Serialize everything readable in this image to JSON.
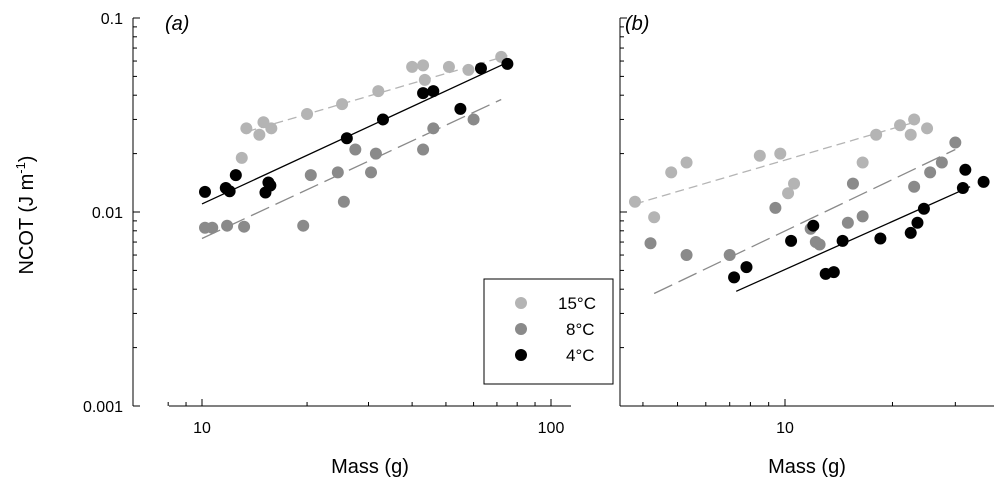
{
  "y_axis_label": {
    "main": "NCOT (J m",
    "sup": "-1",
    "close": ")"
  },
  "legend": {
    "entries": [
      {
        "label": "15°C",
        "color": "#b4b4b4"
      },
      {
        "label": "8°C",
        "color": "#8a8a8a"
      },
      {
        "label": "4°C",
        "color": "#000000"
      }
    ]
  },
  "chart_data": [
    {
      "type": "scatter",
      "panel_label": "(a)",
      "xlabel": "Mass (g)",
      "ylabel": "NCOT (J m-1)",
      "x_scale": "log",
      "y_scale": "log",
      "xlim": [
        8,
        130
      ],
      "ylim": [
        0.001,
        0.1
      ],
      "x_ticks": [
        10,
        100
      ],
      "y_ticks": [
        0.001,
        0.01,
        0.1
      ],
      "x_tick_labels": [
        "10",
        "100"
      ],
      "y_tick_labels": [
        "0.001",
        "0.01",
        "0.1"
      ],
      "legend_position": "center-bottom",
      "series": [
        {
          "name": "15°C",
          "color": "#b4b4b4",
          "line_style": "short-dash",
          "points": [
            [
              13.0,
              0.019
            ],
            [
              13.4,
              0.027
            ],
            [
              14.6,
              0.025
            ],
            [
              15.0,
              0.029
            ],
            [
              15.8,
              0.027
            ],
            [
              20.0,
              0.032
            ],
            [
              25.2,
              0.036
            ],
            [
              32.0,
              0.042
            ],
            [
              40.0,
              0.056
            ],
            [
              43.0,
              0.057
            ],
            [
              43.5,
              0.048
            ],
            [
              51.0,
              0.056
            ],
            [
              58.0,
              0.054
            ],
            [
              72.0,
              0.063
            ]
          ],
          "fit": [
            [
              13.5,
              0.026
            ],
            [
              75,
              0.064
            ]
          ]
        },
        {
          "name": "8°C",
          "color": "#8a8a8a",
          "line_style": "long-dash",
          "points": [
            [
              10.2,
              0.0083
            ],
            [
              10.7,
              0.0083
            ],
            [
              11.8,
              0.0085
            ],
            [
              13.2,
              0.0084
            ],
            [
              19.5,
              0.0085
            ],
            [
              20.5,
              0.0155
            ],
            [
              24.5,
              0.016
            ],
            [
              25.5,
              0.0113
            ],
            [
              27.5,
              0.021
            ],
            [
              30.5,
              0.016
            ],
            [
              31.5,
              0.02
            ],
            [
              43.0,
              0.021
            ],
            [
              46.0,
              0.027
            ],
            [
              60.0,
              0.03
            ]
          ],
          "fit": [
            [
              10,
              0.0073
            ],
            [
              72,
              0.038
            ]
          ]
        },
        {
          "name": "4°C",
          "color": "#000000",
          "line_style": "solid",
          "points": [
            [
              10.2,
              0.0127
            ],
            [
              11.7,
              0.0133
            ],
            [
              12.0,
              0.0128
            ],
            [
              12.5,
              0.0155
            ],
            [
              15.2,
              0.0126
            ],
            [
              15.5,
              0.0142
            ],
            [
              15.7,
              0.0137
            ],
            [
              26.0,
              0.024
            ],
            [
              33.0,
              0.03
            ],
            [
              43.0,
              0.041
            ],
            [
              46.0,
              0.042
            ],
            [
              55.0,
              0.034
            ],
            [
              63.0,
              0.055
            ],
            [
              75.0,
              0.058
            ]
          ],
          "fit": [
            [
              10,
              0.011
            ],
            [
              75,
              0.059
            ]
          ]
        }
      ]
    },
    {
      "type": "scatter",
      "panel_label": "(b)",
      "xlabel": "Mass (g)",
      "ylabel": "NCOT (J m-1)",
      "x_scale": "log",
      "y_scale": "log",
      "xlim": [
        3.3,
        39
      ],
      "ylim": [
        0.001,
        0.1
      ],
      "x_ticks": [
        10
      ],
      "y_ticks": [
        0.001,
        0.01,
        0.1
      ],
      "x_tick_labels": [
        "10"
      ],
      "legend_position": "none",
      "series": [
        {
          "name": "15°C",
          "color": "#b4b4b4",
          "line_style": "short-dash",
          "points": [
            [
              3.8,
              0.0113
            ],
            [
              4.3,
              0.0094
            ],
            [
              4.8,
              0.016
            ],
            [
              5.3,
              0.018
            ],
            [
              8.5,
              0.0195
            ],
            [
              9.7,
              0.02
            ],
            [
              10.2,
              0.0125
            ],
            [
              10.6,
              0.014
            ],
            [
              16.5,
              0.018
            ],
            [
              18.0,
              0.025
            ],
            [
              21.0,
              0.028
            ],
            [
              22.5,
              0.025
            ],
            [
              23.0,
              0.03
            ],
            [
              25.0,
              0.027
            ]
          ],
          "fit": [
            [
              3.8,
              0.011
            ],
            [
              23,
              0.029
            ]
          ]
        },
        {
          "name": "8°C",
          "color": "#8a8a8a",
          "line_style": "long-dash",
          "points": [
            [
              4.2,
              0.0069
            ],
            [
              5.3,
              0.006
            ],
            [
              7.0,
              0.006
            ],
            [
              9.4,
              0.0105
            ],
            [
              11.8,
              0.0082
            ],
            [
              12.2,
              0.007
            ],
            [
              12.5,
              0.0068
            ],
            [
              15.0,
              0.0088
            ],
            [
              15.5,
              0.014
            ],
            [
              16.5,
              0.0095
            ],
            [
              23.0,
              0.0135
            ],
            [
              25.5,
              0.016
            ],
            [
              27.5,
              0.018
            ],
            [
              30.0,
              0.0228
            ]
          ],
          "fit": [
            [
              4.3,
              0.0038
            ],
            [
              30,
              0.021
            ]
          ]
        },
        {
          "name": "4°C",
          "color": "#000000",
          "line_style": "solid",
          "points": [
            [
              7.2,
              0.0046
            ],
            [
              7.8,
              0.0052
            ],
            [
              10.4,
              0.0071
            ],
            [
              12.0,
              0.0085
            ],
            [
              13.0,
              0.0048
            ],
            [
              13.7,
              0.0049
            ],
            [
              14.5,
              0.0071
            ],
            [
              18.5,
              0.0073
            ],
            [
              22.5,
              0.0078
            ],
            [
              23.5,
              0.0088
            ],
            [
              24.5,
              0.0104
            ],
            [
              31.5,
              0.0133
            ],
            [
              32.0,
              0.0165
            ],
            [
              36.0,
              0.0143
            ]
          ],
          "fit": [
            [
              7.3,
              0.0039
            ],
            [
              33,
              0.0135
            ]
          ]
        }
      ]
    }
  ]
}
